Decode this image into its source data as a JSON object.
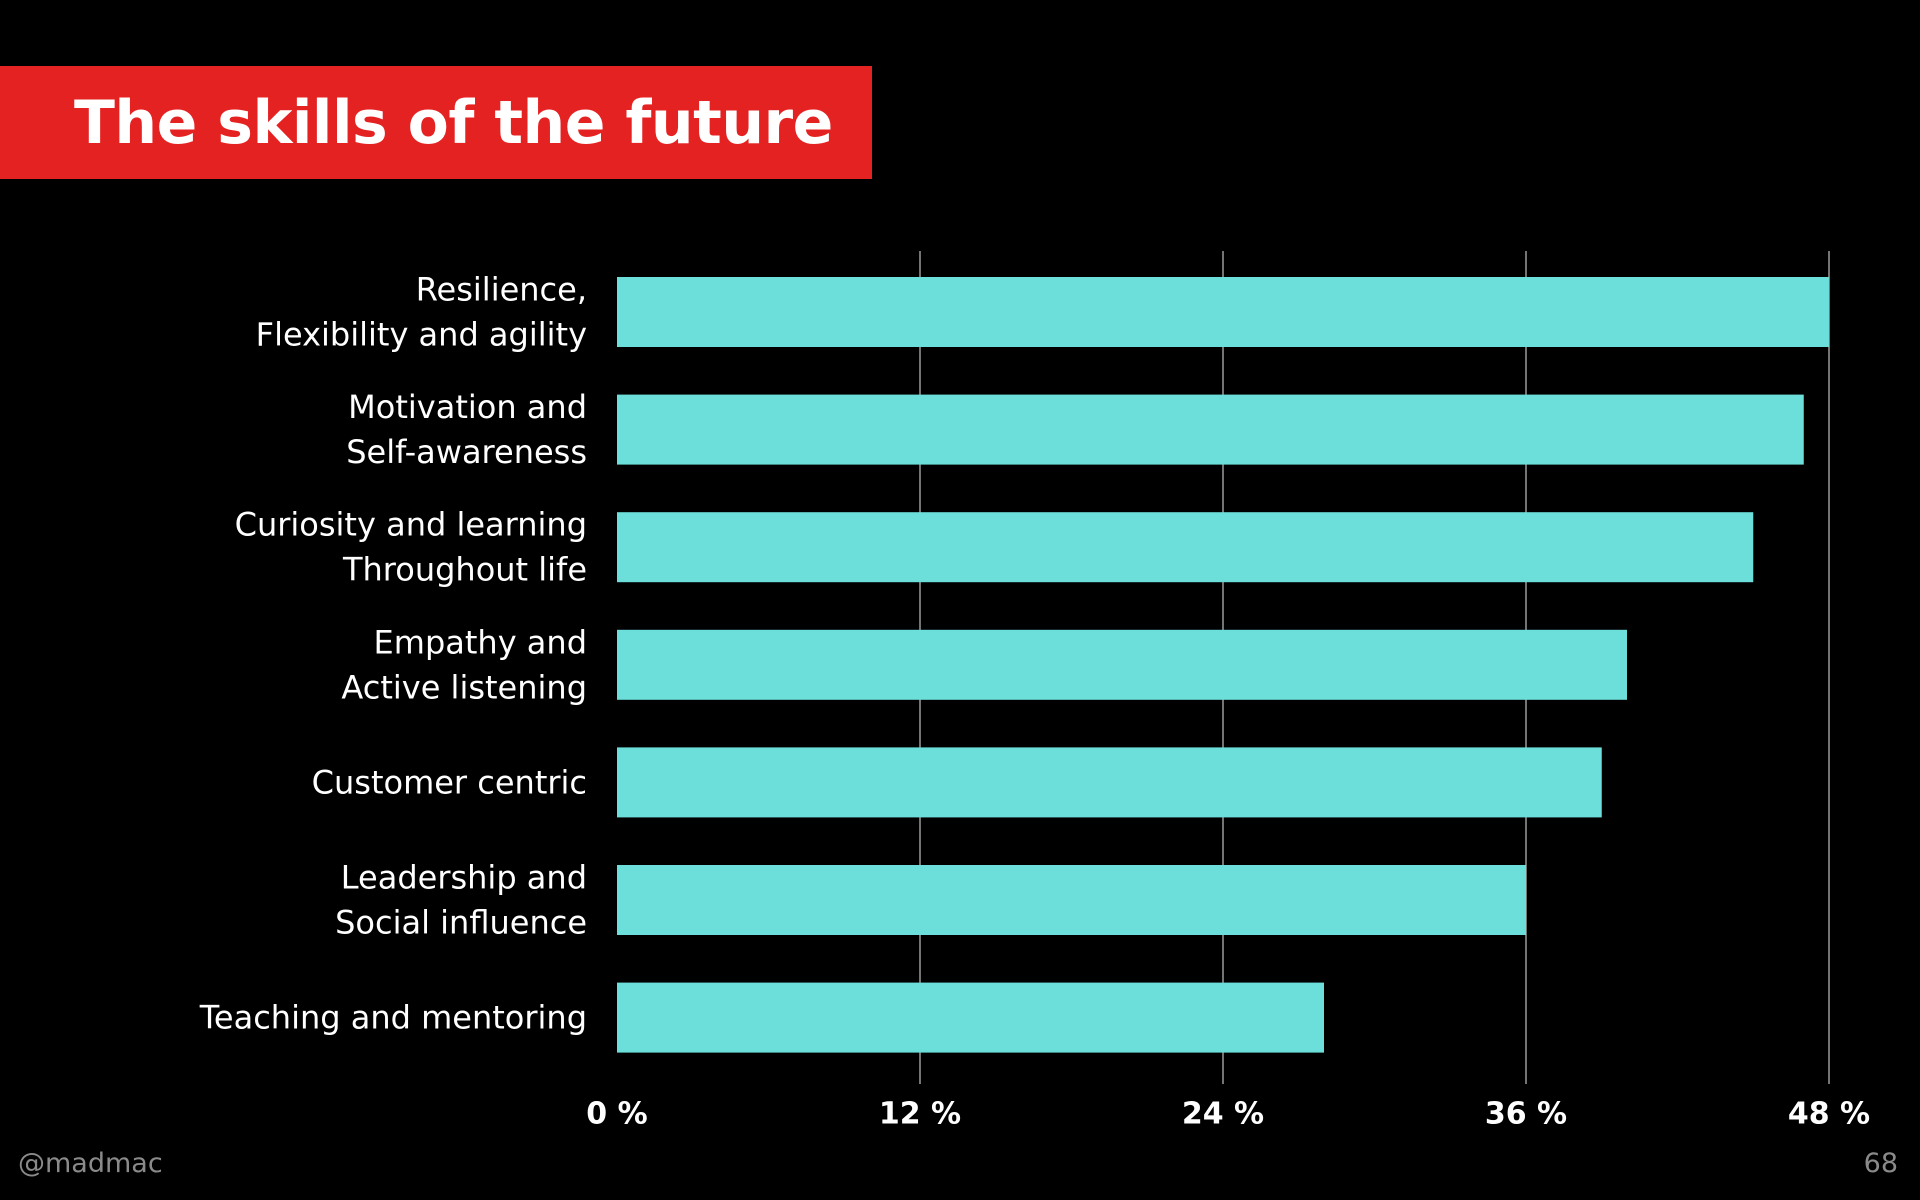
{
  "slide": {
    "title": "The skills of the future",
    "handle": "@madmac",
    "page_number": "68"
  },
  "colors": {
    "background": "#000000",
    "title_banner": "#e52222",
    "bar": "#6cdfda",
    "text": "#ffffff",
    "grid": "#9a9a9a",
    "footer": "#8a8a8a"
  },
  "chart_data": {
    "type": "bar",
    "orientation": "horizontal",
    "title": "The skills of the future",
    "categories": [
      [
        "Resilience,",
        "Flexibility and agility"
      ],
      [
        "Motivation and",
        "Self-awareness"
      ],
      [
        "Curiosity and learning",
        "Throughout life"
      ],
      [
        "Empathy and",
        "Active listening"
      ],
      [
        "Customer centric"
      ],
      [
        "Leadership and",
        "Social influence"
      ],
      [
        "Teaching and mentoring"
      ]
    ],
    "values": [
      48,
      47,
      45,
      40,
      39,
      36,
      28
    ],
    "unit": "%",
    "xlim": [
      0,
      48
    ],
    "xticks": [
      0,
      12,
      24,
      36,
      48
    ],
    "xtick_labels": [
      "0 %",
      "12 %",
      "24 %",
      "36 %",
      "48 %"
    ],
    "grid": "vertical",
    "legend": "none"
  }
}
